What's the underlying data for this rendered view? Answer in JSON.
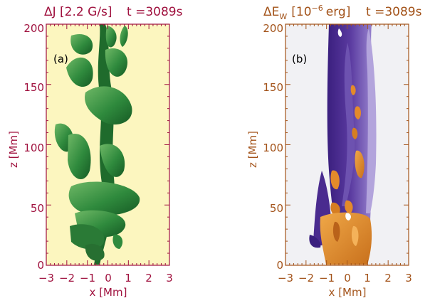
{
  "colors": {
    "left_text": "#a0123f",
    "right_text": "#a3531a",
    "left_bg": "#fcf6bf",
    "left_iso_dark": "#1f6b2c",
    "left_iso_light": "#58a35a",
    "right_bg": "#f1f1f4",
    "right_iso_purple": "#4a2b8f",
    "right_iso_purple_light": "#8f78c8",
    "right_iso_orange": "#e48a2a"
  },
  "chart_data": [
    {
      "type": "heatmap",
      "panel_label": "(a)",
      "title_main": "ΔJ [2.2 G/s]",
      "title_time": "t =3089s",
      "xlabel": "x [Mm]",
      "ylabel": "z [Mm]",
      "xlim": [
        -3,
        3
      ],
      "ylim": [
        0,
        200
      ],
      "xticks": [
        "−3",
        "−2",
        "−1",
        "0",
        "1",
        "2",
        "3"
      ],
      "yticks": [
        "0",
        "50",
        "100",
        "150",
        "200"
      ],
      "isosurface_color": "green"
    },
    {
      "type": "heatmap",
      "panel_label": "(b)",
      "title_main": "ΔE",
      "title_sub": "W",
      "title_unit_pre": "[10",
      "title_exp": "−6",
      "title_unit_post": "erg]",
      "title_time": "t =3089s",
      "xlabel": "x [Mm]",
      "ylabel": "z [Mm]",
      "xlim": [
        -3,
        3
      ],
      "ylim": [
        0,
        200
      ],
      "xticks": [
        "−3",
        "−2",
        "−1",
        "0",
        "1",
        "2",
        "3"
      ],
      "yticks": [
        "0",
        "50",
        "100",
        "150",
        "200"
      ],
      "isosurface_color": "purple-orange"
    }
  ]
}
